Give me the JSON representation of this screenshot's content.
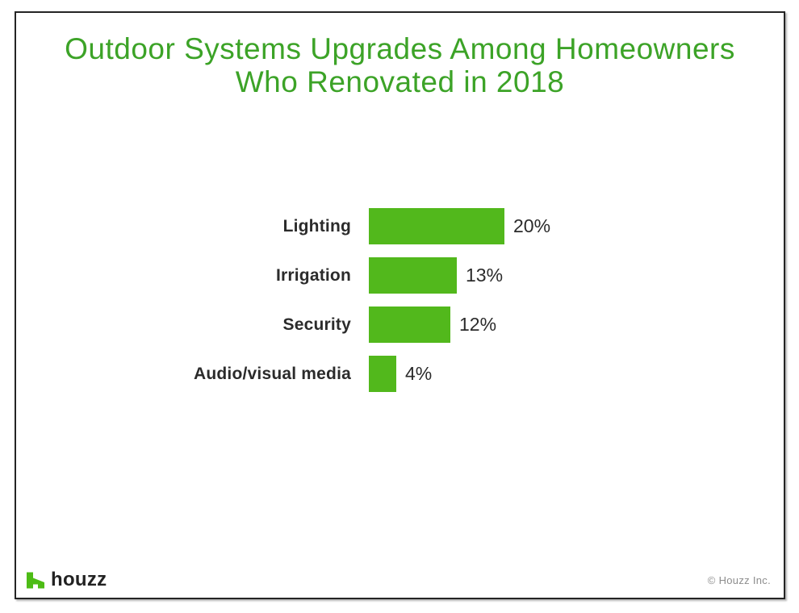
{
  "title": {
    "line1": "Outdoor Systems Upgrades Among Homeowners",
    "line2": "Who Renovated in 2018"
  },
  "chart_data": {
    "type": "bar",
    "orientation": "horizontal",
    "title": "Outdoor Systems Upgrades Among Homeowners Who Renovated in 2018",
    "categories": [
      "Lighting",
      "Irrigation",
      "Security",
      "Audio/visual media"
    ],
    "values": [
      20,
      13,
      12,
      4
    ],
    "value_labels": [
      "20%",
      "13%",
      "12%",
      "4%"
    ],
    "xlabel": "",
    "ylabel": "",
    "xlim": [
      0,
      22
    ],
    "grid": false,
    "legend": false,
    "bar_color": "#52b81c"
  },
  "footer": {
    "logo_text": "houzz",
    "copyright": "© Houzz Inc."
  },
  "colors": {
    "title_green": "#3ca327",
    "bar_green": "#52b81c",
    "logo_green": "#4dbc15",
    "text_dark": "#2b2b2b",
    "copyright_gray": "#8d8d8d",
    "border": "#242424"
  }
}
